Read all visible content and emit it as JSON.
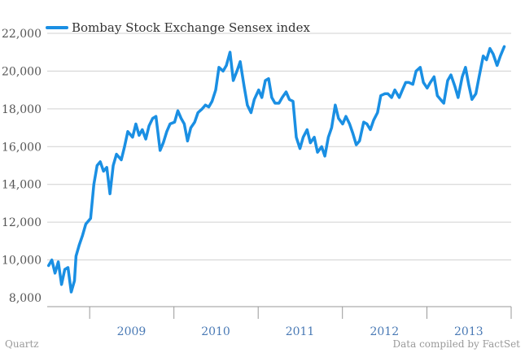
{
  "footer": {
    "left": "Quartz",
    "right": "Data compiled by FactSet"
  },
  "colors": {
    "line": "#1a8fe3",
    "grid": "#d0d0d0",
    "axis": "#999999",
    "ytick_text": "#555555",
    "xtick_text": "#4a7ab5"
  },
  "chart_data": {
    "type": "line",
    "series": [
      {
        "name": "Bombay Stock Exchange Sensex index",
        "x": [
          "2008-07-07",
          "2008-07-21",
          "2008-08-04",
          "2008-08-18",
          "2008-09-01",
          "2008-09-15",
          "2008-09-29",
          "2008-10-13",
          "2008-10-27",
          "2008-11-03",
          "2008-11-17",
          "2008-12-01",
          "2008-12-15",
          "2009-01-05",
          "2009-01-19",
          "2009-02-02",
          "2009-02-16",
          "2009-03-02",
          "2009-03-16",
          "2009-03-30",
          "2009-04-13",
          "2009-04-27",
          "2009-05-18",
          "2009-06-01",
          "2009-06-15",
          "2009-07-06",
          "2009-07-20",
          "2009-08-03",
          "2009-08-17",
          "2009-09-01",
          "2009-09-15",
          "2009-10-01",
          "2009-10-15",
          "2009-11-02",
          "2009-11-16",
          "2009-12-01",
          "2009-12-15",
          "2010-01-04",
          "2010-01-18",
          "2010-02-01",
          "2010-02-15",
          "2010-03-01",
          "2010-03-15",
          "2010-04-01",
          "2010-04-15",
          "2010-05-03",
          "2010-05-17",
          "2010-06-01",
          "2010-06-15",
          "2010-07-01",
          "2010-07-15",
          "2010-08-02",
          "2010-08-16",
          "2010-09-01",
          "2010-09-15",
          "2010-10-01",
          "2010-10-15",
          "2010-11-01",
          "2010-11-15",
          "2010-12-01",
          "2010-12-15",
          "2011-01-03",
          "2011-01-17",
          "2011-02-01",
          "2011-02-15",
          "2011-03-01",
          "2011-03-15",
          "2011-04-01",
          "2011-04-15",
          "2011-05-02",
          "2011-05-16",
          "2011-06-01",
          "2011-06-15",
          "2011-07-01",
          "2011-07-15",
          "2011-08-01",
          "2011-08-15",
          "2011-09-01",
          "2011-09-15",
          "2011-10-03",
          "2011-10-17",
          "2011-11-01",
          "2011-11-15",
          "2011-12-01",
          "2011-12-15",
          "2012-01-02",
          "2012-01-16",
          "2012-02-01",
          "2012-02-15",
          "2012-03-01",
          "2012-03-15",
          "2012-04-02",
          "2012-04-16",
          "2012-05-01",
          "2012-05-15",
          "2012-06-01",
          "2012-06-15",
          "2012-07-02",
          "2012-07-16",
          "2012-08-01",
          "2012-08-15",
          "2012-09-03",
          "2012-09-17",
          "2012-10-01",
          "2012-10-15",
          "2012-11-01",
          "2012-11-15",
          "2012-12-03",
          "2012-12-17",
          "2013-01-02",
          "2013-01-16",
          "2013-02-01",
          "2013-02-15",
          "2013-03-01",
          "2013-03-15",
          "2013-04-01",
          "2013-04-15",
          "2013-05-02",
          "2013-05-16",
          "2013-06-03",
          "2013-06-17",
          "2013-07-01",
          "2013-07-15",
          "2013-08-01",
          "2013-08-15",
          "2013-09-02",
          "2013-09-16",
          "2013-10-01",
          "2013-10-15",
          "2013-11-01",
          "2013-11-15",
          "2013-12-02"
        ],
        "values": [
          9700,
          10000,
          9300,
          9900,
          8700,
          9500,
          9600,
          8300,
          8900,
          10200,
          10800,
          11300,
          11900,
          12200,
          14000,
          15000,
          15200,
          14700,
          14900,
          13500,
          15000,
          15600,
          15300,
          16000,
          16800,
          16500,
          17200,
          16600,
          16900,
          16400,
          17100,
          17500,
          17600,
          15800,
          16200,
          16800,
          17200,
          17300,
          17900,
          17500,
          17200,
          16300,
          17000,
          17300,
          17800,
          18000,
          18200,
          18100,
          18400,
          19000,
          20200,
          20000,
          20300,
          21000,
          19500,
          20000,
          20500,
          19200,
          18200,
          17800,
          18500,
          19000,
          18600,
          19500,
          19600,
          18600,
          18300,
          18300,
          18600,
          18900,
          18500,
          18400,
          16500,
          15900,
          16500,
          16900,
          16200,
          16500,
          15700,
          16000,
          15500,
          16500,
          17000,
          18200,
          17500,
          17200,
          17600,
          17200,
          16700,
          16100,
          16300,
          17300,
          17200,
          16900,
          17400,
          17800,
          18700,
          18800,
          18800,
          18600,
          19000,
          18600,
          19000,
          19400,
          19400,
          19300,
          20000,
          20200,
          19400,
          19100,
          19400,
          19700,
          18700,
          18500,
          18300,
          19500,
          19800,
          19200,
          18600,
          19700,
          20200,
          19300,
          18500,
          18800,
          19700,
          20800,
          20600,
          21200,
          20900,
          20300,
          20800,
          21300
        ]
      }
    ],
    "ylim": [
      8000,
      22000
    ],
    "yticks": [
      8000,
      10000,
      12000,
      14000,
      16000,
      18000,
      20000,
      22000
    ],
    "ytick_labels": [
      "8,000",
      "10,000",
      "12,000",
      "14,000",
      "16,000",
      "18,000",
      "20,000",
      "22,000"
    ],
    "xlim": [
      "2008-07-01",
      "2014-01-01"
    ],
    "xtick_labels": [
      "2009",
      "2010",
      "2011",
      "2012",
      "2013"
    ],
    "grid": true,
    "legend_position": "top-left"
  }
}
